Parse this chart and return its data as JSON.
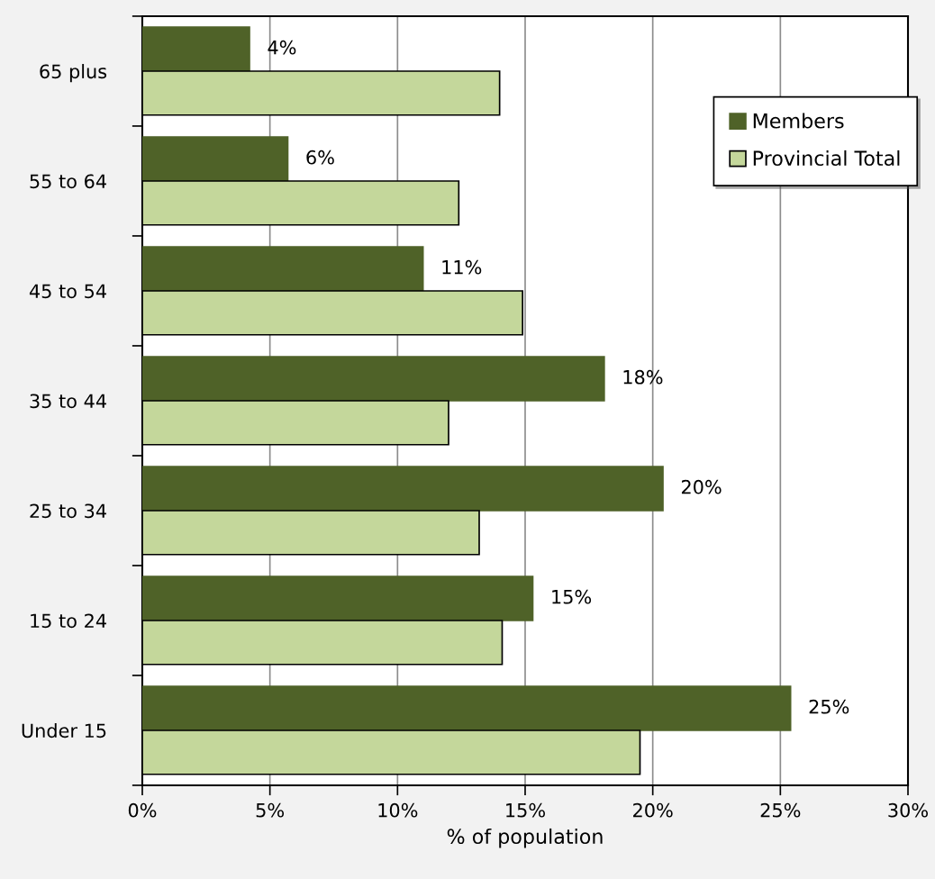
{
  "chart_data": {
    "type": "bar",
    "orientation": "horizontal",
    "categories": [
      "65 plus",
      "55 to 64",
      "45 to 54",
      "35 to 44",
      "25 to 34",
      "15 to 24",
      "Under 15"
    ],
    "series": [
      {
        "name": "Members",
        "color": "#4f6228",
        "values": [
          4.2,
          5.7,
          11.0,
          18.1,
          20.4,
          15.3,
          25.4
        ],
        "value_labels": [
          "4%",
          "6%",
          "11%",
          "18%",
          "20%",
          "15%",
          "25%"
        ]
      },
      {
        "name": "Provincial Total",
        "color": "#c4d79b",
        "values": [
          14.0,
          12.4,
          14.9,
          12.0,
          13.2,
          14.1,
          19.5
        ]
      }
    ],
    "xlabel": "% of population",
    "xlim": [
      0,
      30
    ],
    "xticks": [
      {
        "value": 0,
        "label": "0%"
      },
      {
        "value": 5,
        "label": "5%"
      },
      {
        "value": 10,
        "label": "10%"
      },
      {
        "value": 15,
        "label": "15%"
      },
      {
        "value": 20,
        "label": "20%"
      },
      {
        "value": 25,
        "label": "25%"
      },
      {
        "value": 30,
        "label": "30%"
      }
    ],
    "grid": "x",
    "legend": "top right"
  }
}
